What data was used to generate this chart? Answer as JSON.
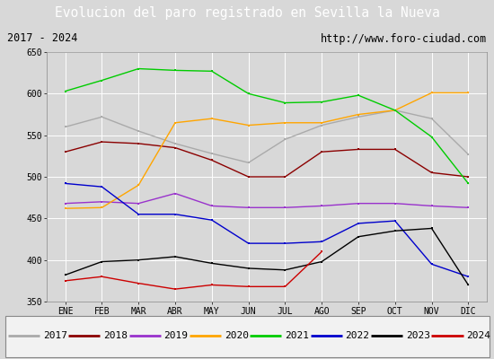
{
  "title": "Evolucion del paro registrado en Sevilla la Nueva",
  "subtitle_left": "2017 - 2024",
  "subtitle_right": "http://www.foro-ciudad.com",
  "months": [
    "ENE",
    "FEB",
    "MAR",
    "ABR",
    "MAY",
    "JUN",
    "JUL",
    "AGO",
    "SEP",
    "OCT",
    "NOV",
    "DIC"
  ],
  "ylim": [
    350,
    650
  ],
  "yticks": [
    350,
    400,
    450,
    500,
    550,
    600,
    650
  ],
  "series": {
    "2017": {
      "color": "#aaaaaa",
      "data": [
        560,
        572,
        555,
        540,
        528,
        517,
        545,
        562,
        572,
        580,
        570,
        527
      ]
    },
    "2018": {
      "color": "#8b0000",
      "data": [
        530,
        542,
        540,
        535,
        520,
        500,
        500,
        530,
        533,
        533,
        505,
        500
      ]
    },
    "2019": {
      "color": "#9932cc",
      "data": [
        468,
        470,
        468,
        480,
        465,
        463,
        463,
        465,
        468,
        468,
        465,
        463
      ]
    },
    "2020": {
      "color": "#ffa500",
      "data": [
        462,
        463,
        490,
        565,
        570,
        562,
        565,
        565,
        575,
        580,
        601,
        601
      ]
    },
    "2021": {
      "color": "#00cc00",
      "data": [
        603,
        616,
        630,
        628,
        627,
        600,
        589,
        590,
        598,
        580,
        548,
        492
      ]
    },
    "2022": {
      "color": "#0000cc",
      "data": [
        492,
        488,
        455,
        455,
        448,
        420,
        420,
        422,
        444,
        447,
        395,
        380
      ]
    },
    "2023": {
      "color": "#000000",
      "data": [
        382,
        398,
        400,
        404,
        396,
        390,
        388,
        398,
        428,
        435,
        438,
        370
      ]
    },
    "2024": {
      "color": "#cc0000",
      "data": [
        375,
        380,
        372,
        365,
        370,
        368,
        368,
        410,
        null,
        null,
        null,
        null
      ]
    }
  },
  "background_color": "#d8d8d8",
  "plot_bg_color": "#d8d8d8",
  "title_bg_color": "#4472c4",
  "title_color": "#ffffff",
  "header_bg_color": "#d0d0d0",
  "grid_color": "#ffffff",
  "legend_bg_color": "#f2f2f2",
  "title_fontsize": 10.5,
  "header_fontsize": 8.5,
  "tick_fontsize": 7,
  "legend_fontsize": 8
}
